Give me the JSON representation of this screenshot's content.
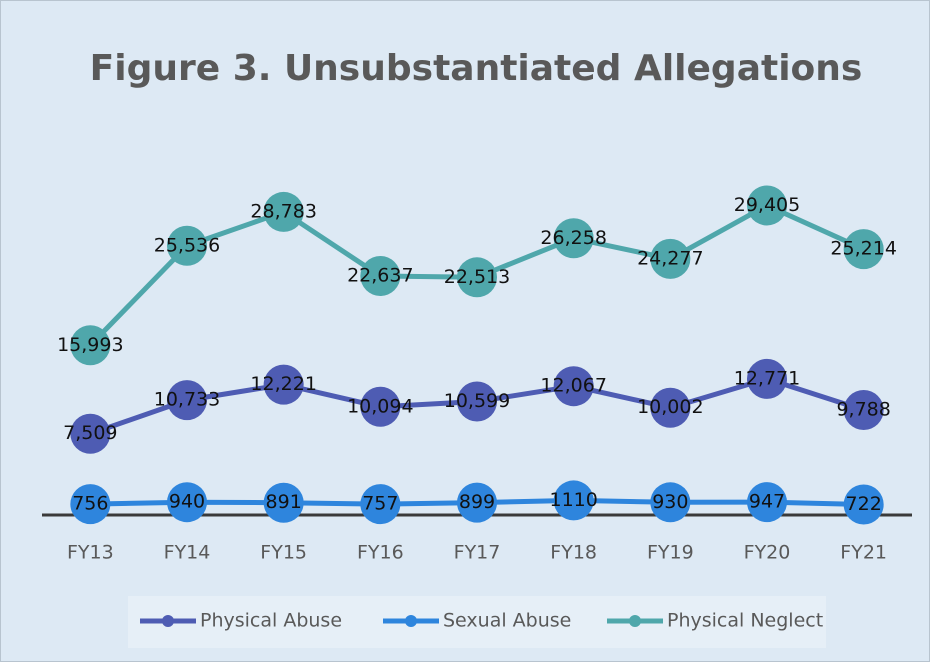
{
  "chart_data": {
    "type": "line",
    "title": "Figure 3. Unsubstantiated  Allegations",
    "categories": [
      "FY13",
      "FY14",
      "FY15",
      "FY16",
      "FY17",
      "FY18",
      "FY19",
      "FY20",
      "FY21"
    ],
    "ylim": [
      0,
      40000
    ],
    "series": [
      {
        "name": "Physical Abuse",
        "color": "#4e5cb3",
        "values": [
          7509,
          10733,
          12221,
          10094,
          10599,
          12067,
          10002,
          12771,
          9788
        ],
        "value_labels": [
          "7,509",
          "10,733",
          "12,221",
          "10,094",
          "10,599",
          "12,067",
          "10,002",
          "12,771",
          "9,788"
        ]
      },
      {
        "name": "Sexual Abuse",
        "color": "#2e85dd",
        "values": [
          756,
          940,
          891,
          757,
          899,
          1110,
          930,
          947,
          722
        ]
      },
      {
        "name": "Physical Neglect",
        "color": "#4fa7ab",
        "values": [
          15993,
          25536,
          28783,
          22637,
          22513,
          26258,
          24277,
          29405,
          25214
        ],
        "value_labels": [
          "15,993",
          "25,536",
          "28,783",
          "22,637",
          "22,513",
          "26,258",
          "24,277",
          "29,405",
          "25,214"
        ]
      }
    ],
    "legend": "bottom"
  }
}
